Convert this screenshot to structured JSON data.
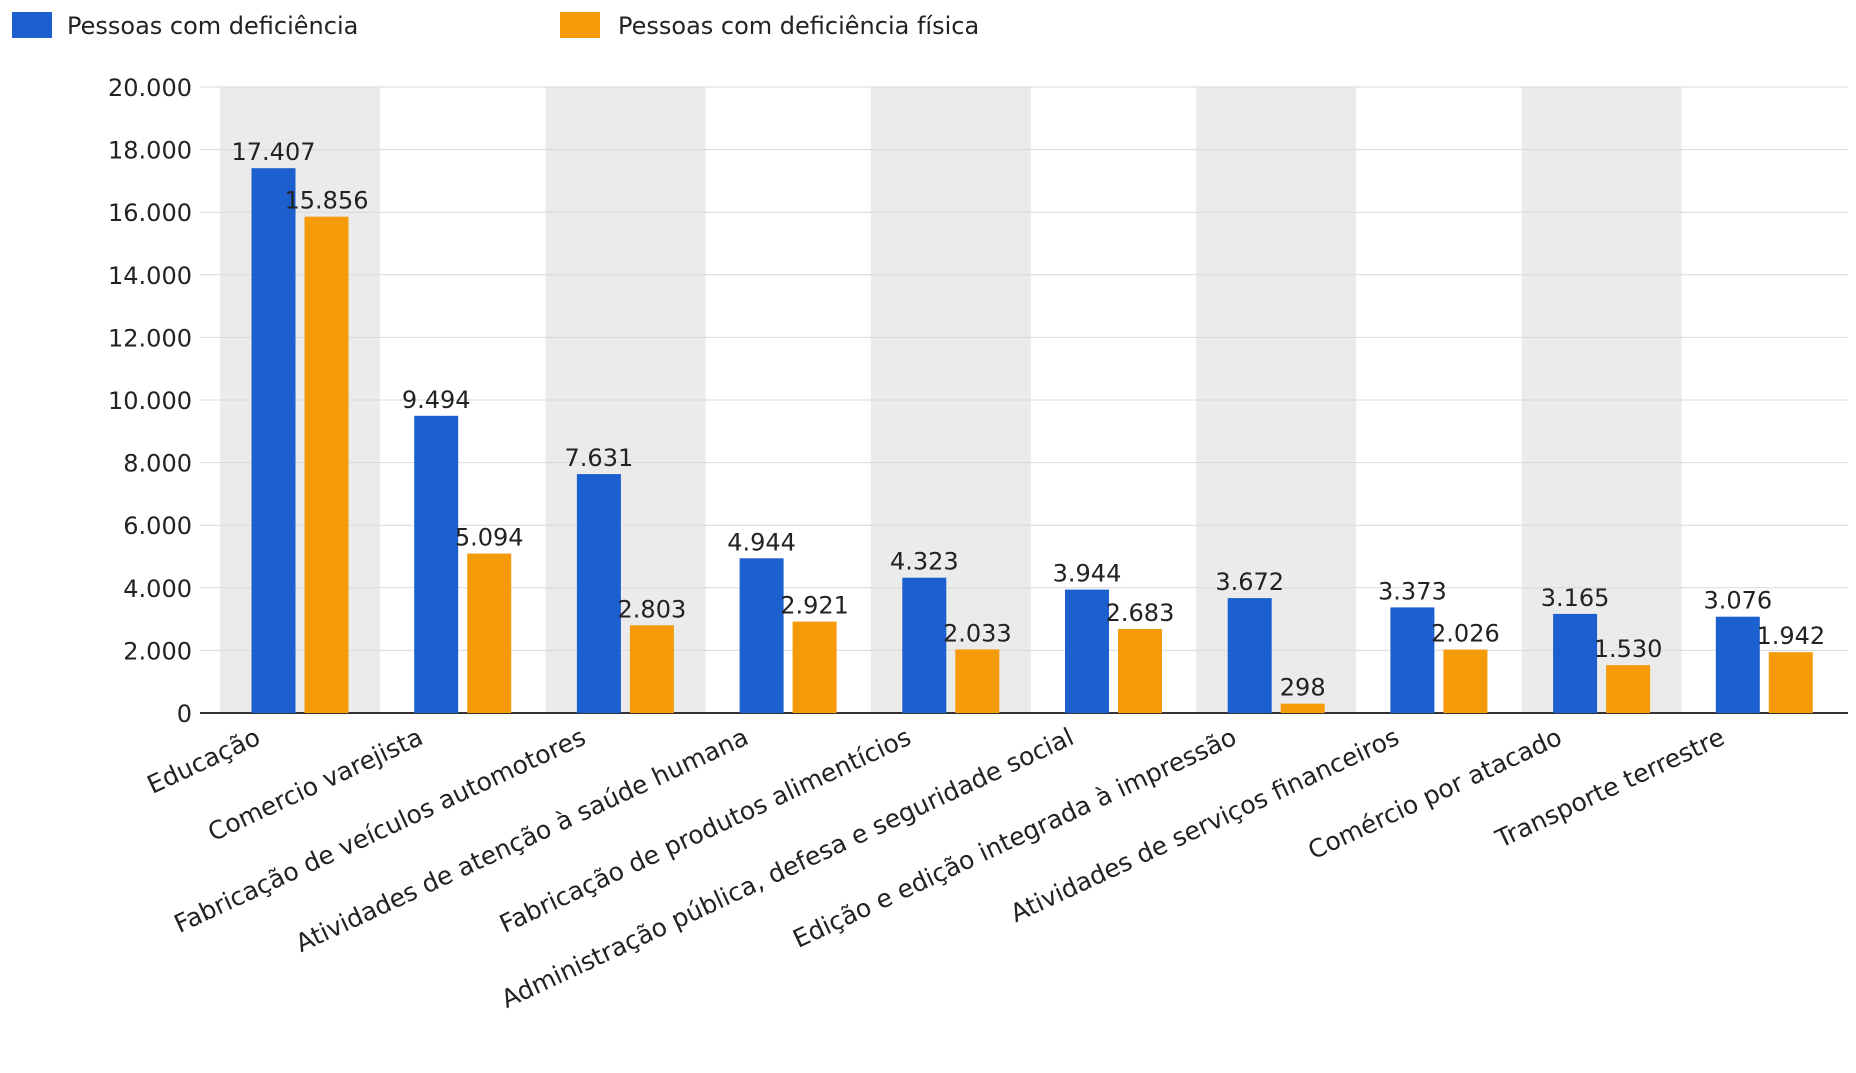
{
  "colors": {
    "series_1": "#1c5fce",
    "series_2": "#f59a09",
    "band": "#ebebeb",
    "grid": "#d9d9d9",
    "axis": "#333333"
  },
  "chart_data": {
    "type": "bar",
    "categories": [
      "Educação",
      "Comercio varejista",
      "Fabricação de veículos automotores",
      "Atividades de atenção à saúde humana",
      "Fabricação de produtos alimentícios",
      "Administração pública, defesa e seguridade social",
      "Edição e edição integrada à impressão",
      "Atividades de serviços financeiros",
      "Comércio por atacado",
      "Transporte terrestre"
    ],
    "series": [
      {
        "name": "Pessoas com deficiência",
        "values": [
          17407,
          9494,
          7631,
          4944,
          4323,
          3944,
          3672,
          3373,
          3165,
          3076
        ],
        "labels": [
          "17.407",
          "9.494",
          "7.631",
          "4.944",
          "4.323",
          "3.944",
          "3.672",
          "3.373",
          "3.165",
          "3.076"
        ]
      },
      {
        "name": "Pessoas com deficiência física",
        "values": [
          15856,
          5094,
          2803,
          2921,
          2033,
          2683,
          298,
          2026,
          1530,
          1942
        ],
        "labels": [
          "15.856",
          "5.094",
          "2.803",
          "2.921",
          "2.033",
          "2.683",
          "298",
          "2.026",
          "1.530",
          "1.942"
        ]
      }
    ],
    "ylim": [
      0,
      20000
    ],
    "y_ticks": [
      0,
      2000,
      4000,
      6000,
      8000,
      10000,
      12000,
      14000,
      16000,
      18000,
      20000
    ],
    "y_tick_labels": [
      "0",
      "2.000",
      "4.000",
      "6.000",
      "8.000",
      "10.000",
      "12.000",
      "14.000",
      "16.000",
      "18.000",
      "20.000"
    ],
    "grid": true,
    "alternating_bands": true,
    "legend_position": "top-left",
    "data_labels": true,
    "x_label_rotation": "diagonal"
  }
}
